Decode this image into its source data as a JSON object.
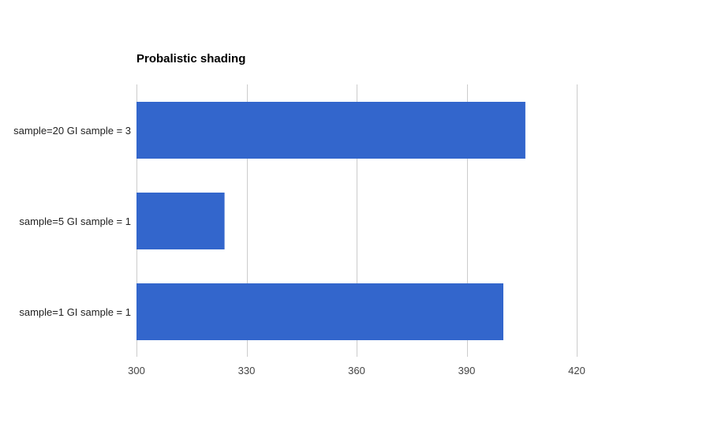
{
  "chart_data": {
    "type": "bar",
    "orientation": "horizontal",
    "title": "Probalistic shading",
    "categories": [
      "sample=20 GI sample = 3",
      "sample=5 GI sample = 1",
      "sample=1 GI sample = 1"
    ],
    "series": [
      {
        "values": [
          406,
          324,
          400
        ]
      }
    ],
    "xlim": [
      300,
      440
    ],
    "xticks": [
      300,
      330,
      360,
      390,
      420
    ],
    "xlabel": "",
    "ylabel": "",
    "grid": true,
    "legend": "none",
    "bar_color": "#3366cc",
    "grid_color": "#cccccc"
  }
}
